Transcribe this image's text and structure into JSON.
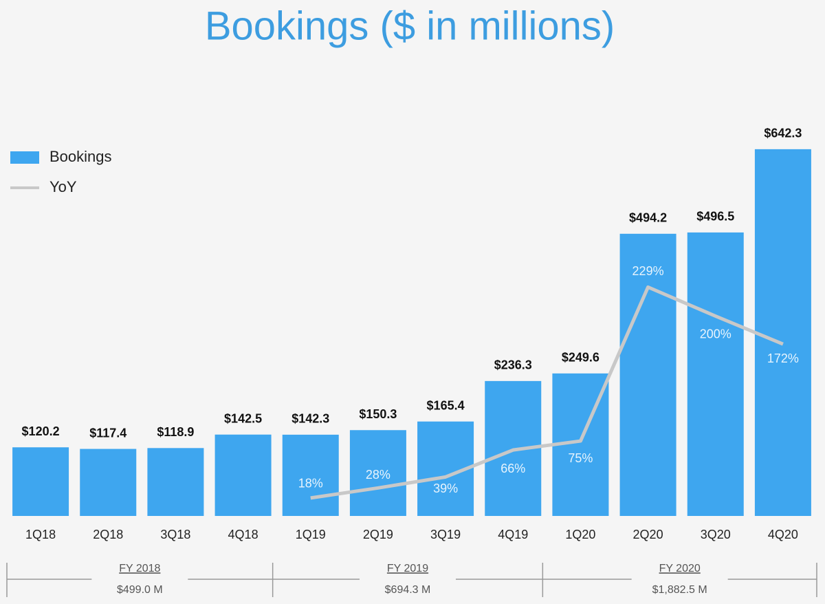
{
  "chart_data": {
    "type": "bar",
    "title": "Bookings ($ in millions)",
    "categories": [
      "1Q18",
      "2Q18",
      "3Q18",
      "4Q18",
      "1Q19",
      "2Q19",
      "3Q19",
      "4Q19",
      "1Q20",
      "2Q20",
      "3Q20",
      "4Q20"
    ],
    "series": [
      {
        "name": "Bookings",
        "type": "bar",
        "color": "#3ea6ef",
        "values": [
          120.2,
          117.4,
          118.9,
          142.5,
          142.3,
          150.3,
          165.4,
          236.3,
          249.6,
          494.2,
          496.5,
          642.3
        ],
        "value_labels": [
          "$120.2",
          "$117.4",
          "$118.9",
          "$142.5",
          "$142.3",
          "$150.3",
          "$165.4",
          "$236.3",
          "$249.6",
          "$494.2",
          "$496.5",
          "$642.3"
        ]
      },
      {
        "name": "YoY",
        "type": "line",
        "axis": "y2",
        "color": "#c8c8c8",
        "values": [
          null,
          null,
          null,
          null,
          18,
          28,
          39,
          66,
          75,
          229,
          200,
          172
        ],
        "value_labels": [
          null,
          null,
          null,
          null,
          "18%",
          "28%",
          "39%",
          "66%",
          "75%",
          "229%",
          "200%",
          "172%"
        ]
      }
    ],
    "ylim": [
      0,
      700
    ],
    "y2lim": [
      0,
      400
    ],
    "legend": "top-left",
    "fiscal_years": [
      {
        "label": "FY 2018",
        "total": "$499.0 M"
      },
      {
        "label": "FY 2019",
        "total": "$694.3 M"
      },
      {
        "label": "FY 2020",
        "total": "$1,882.5 M"
      }
    ]
  }
}
